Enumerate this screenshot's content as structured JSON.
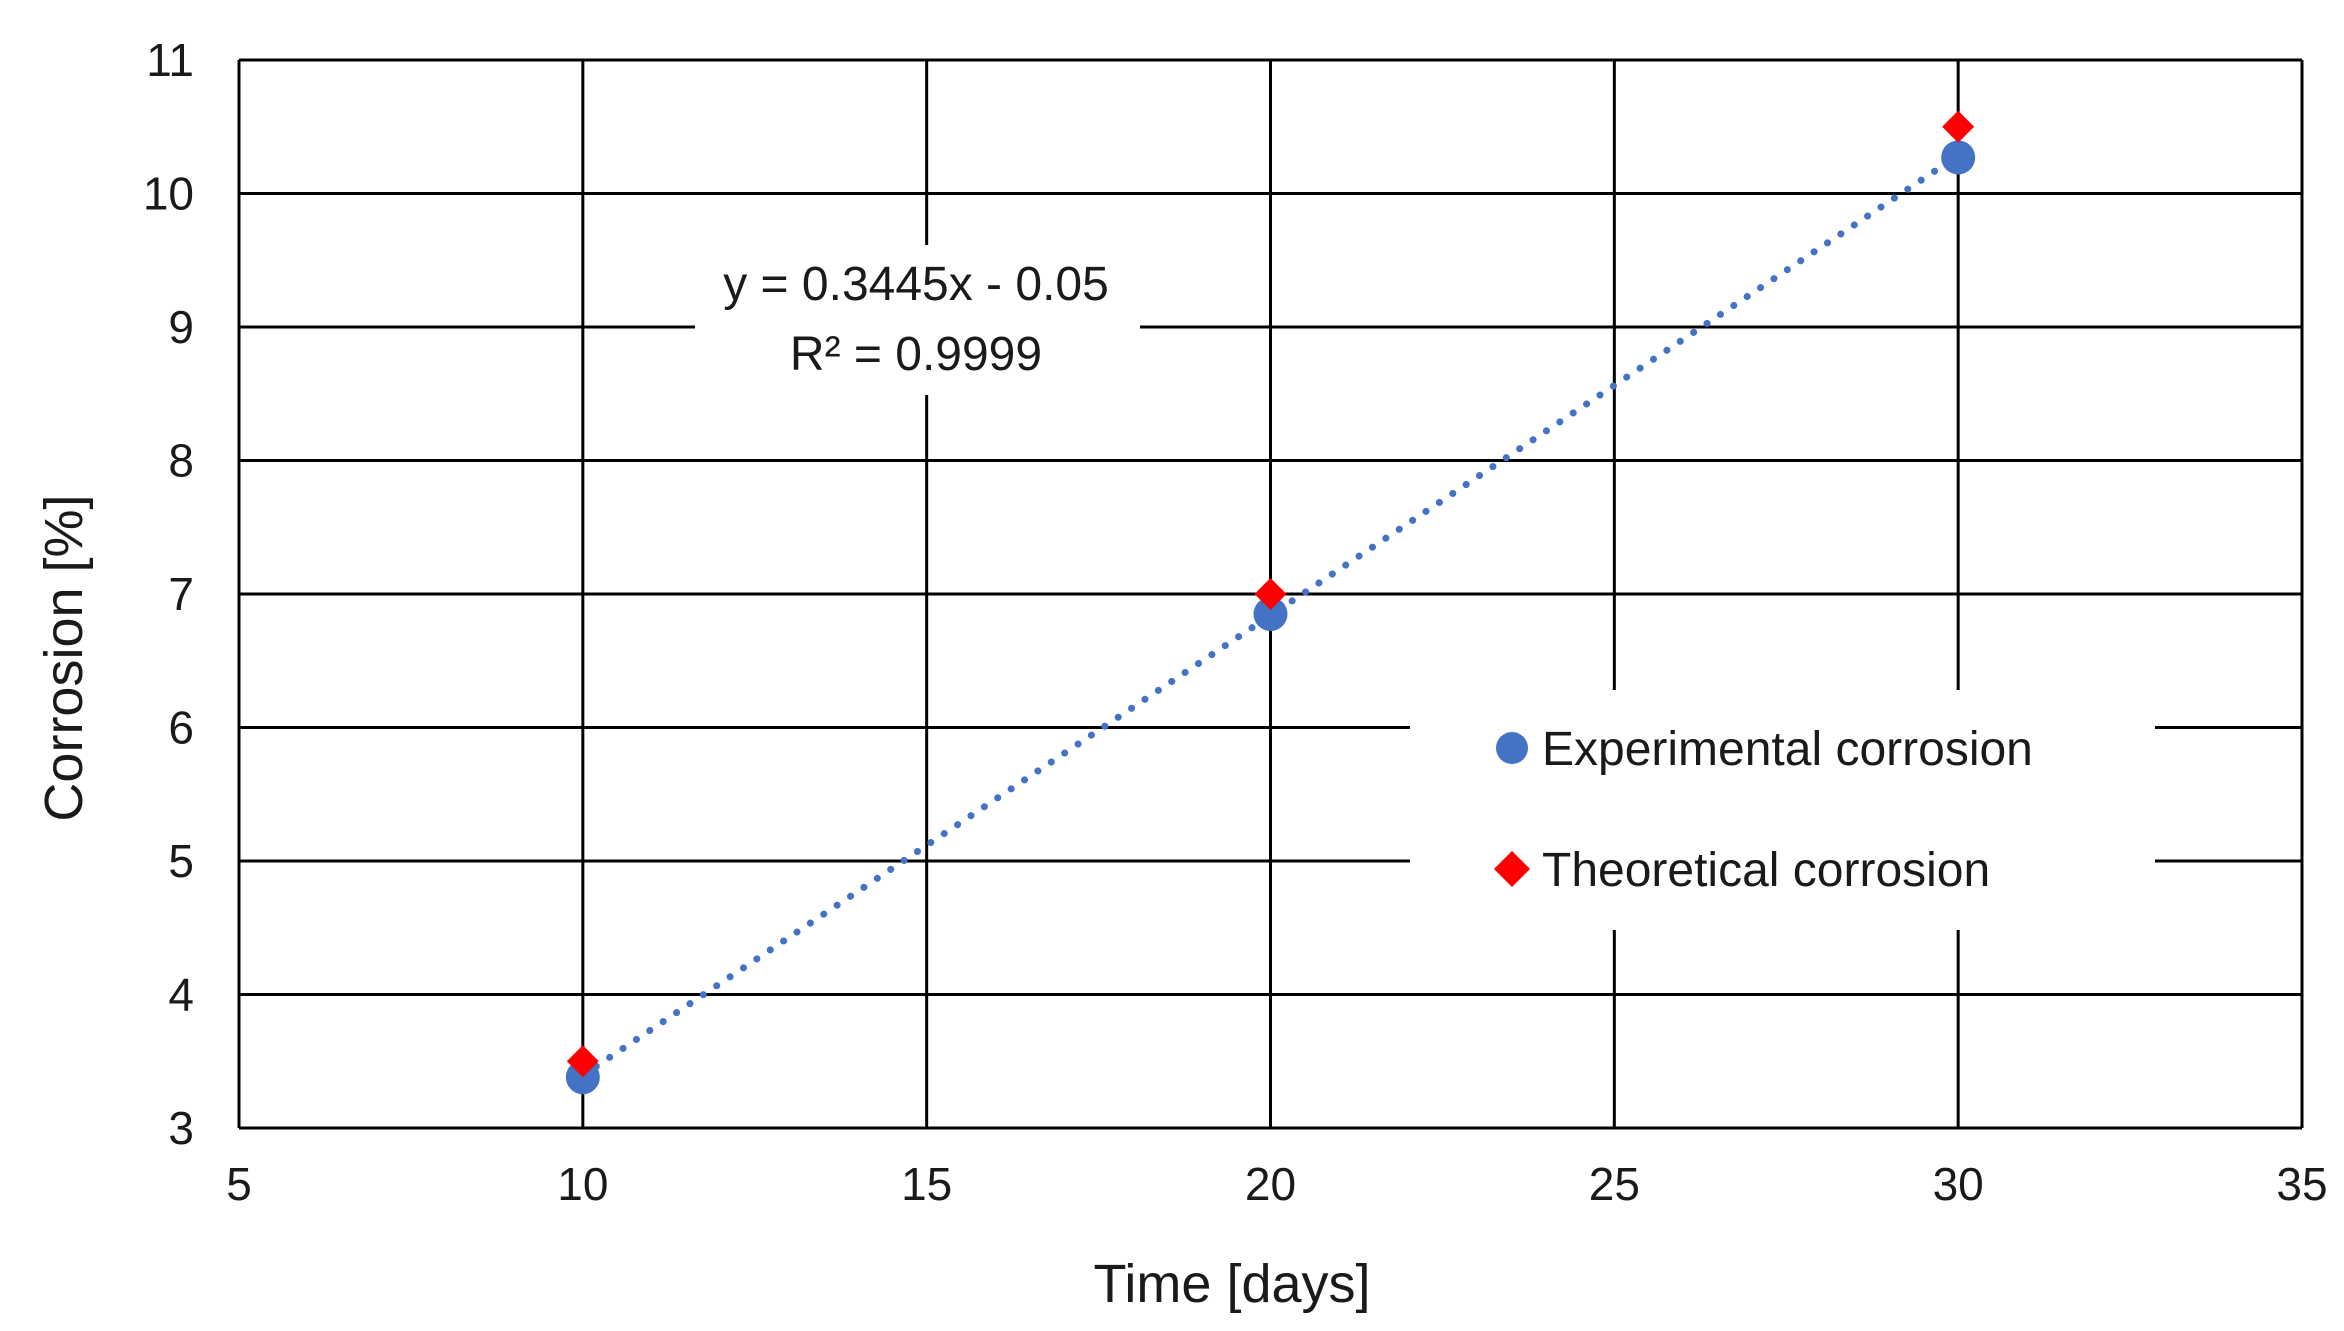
{
  "chart_data": {
    "type": "scatter",
    "title": "",
    "xlabel": "Time [days]",
    "ylabel": "Corrosion [%]",
    "xlim": [
      5,
      35
    ],
    "ylim": [
      3,
      11
    ],
    "xticks": [
      5,
      10,
      15,
      20,
      25,
      30,
      35
    ],
    "yticks": [
      3,
      4,
      5,
      6,
      7,
      8,
      9,
      10,
      11
    ],
    "grid": true,
    "legend_position": "center-right",
    "series": [
      {
        "name": "Experimental corrosion",
        "marker": "circle",
        "color": "#4472C4",
        "x": [
          10,
          20,
          30
        ],
        "y": [
          3.38,
          6.85,
          10.27
        ]
      },
      {
        "name": "Theoretical corrosion",
        "marker": "diamond",
        "color": "#FF0000",
        "x": [
          10,
          20,
          30
        ],
        "y": [
          3.5,
          7.0,
          10.5
        ]
      }
    ],
    "trendline": {
      "series": "Experimental corrosion",
      "style": "dotted",
      "color": "#4472C4",
      "slope": 0.3445,
      "intercept": -0.05,
      "x_range": [
        10,
        30
      ],
      "equation": "y = 0.3445x - 0.05",
      "r_squared": "R² = 0.9999"
    }
  }
}
